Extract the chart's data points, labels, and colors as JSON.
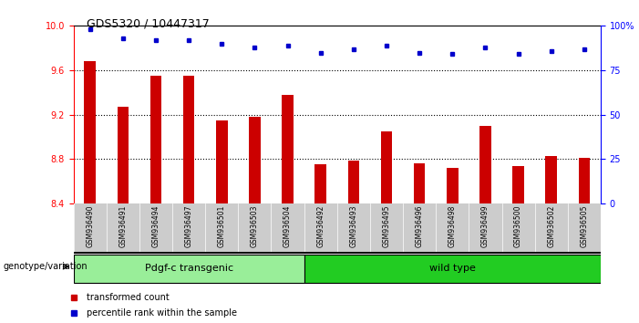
{
  "title": "GDS5320 / 10447317",
  "samples": [
    "GSM936490",
    "GSM936491",
    "GSM936494",
    "GSM936497",
    "GSM936501",
    "GSM936503",
    "GSM936504",
    "GSM936492",
    "GSM936493",
    "GSM936495",
    "GSM936496",
    "GSM936498",
    "GSM936499",
    "GSM936500",
    "GSM936502",
    "GSM936505"
  ],
  "bar_values": [
    9.68,
    9.27,
    9.55,
    9.55,
    9.15,
    9.18,
    9.38,
    8.75,
    8.79,
    9.05,
    8.76,
    8.72,
    9.1,
    8.74,
    8.83,
    8.81
  ],
  "percentile_values": [
    98,
    93,
    92,
    92,
    90,
    88,
    89,
    85,
    87,
    89,
    85,
    84,
    88,
    84,
    86,
    87
  ],
  "bar_color": "#cc0000",
  "percentile_color": "#0000cc",
  "ylim_left": [
    8.4,
    10.0
  ],
  "ylim_right": [
    0,
    100
  ],
  "yticks_left": [
    8.4,
    8.8,
    9.2,
    9.6,
    10.0
  ],
  "yticks_right": [
    0,
    25,
    50,
    75,
    100
  ],
  "ytick_labels_right": [
    "0",
    "25",
    "50",
    "75",
    "100%"
  ],
  "groups": [
    {
      "label": "Pdgf-c transgenic",
      "start": 0,
      "end": 7,
      "color": "#99ee99"
    },
    {
      "label": "wild type",
      "start": 7,
      "end": 16,
      "color": "#22cc22"
    }
  ],
  "legend_bar_label": "transformed count",
  "legend_pct_label": "percentile rank within the sample",
  "genotype_label": "genotype/variation",
  "bg_color": "#ffffff",
  "tick_label_area_color": "#cccccc",
  "bar_width": 0.35,
  "grid_yticks": [
    8.8,
    9.2,
    9.6
  ]
}
